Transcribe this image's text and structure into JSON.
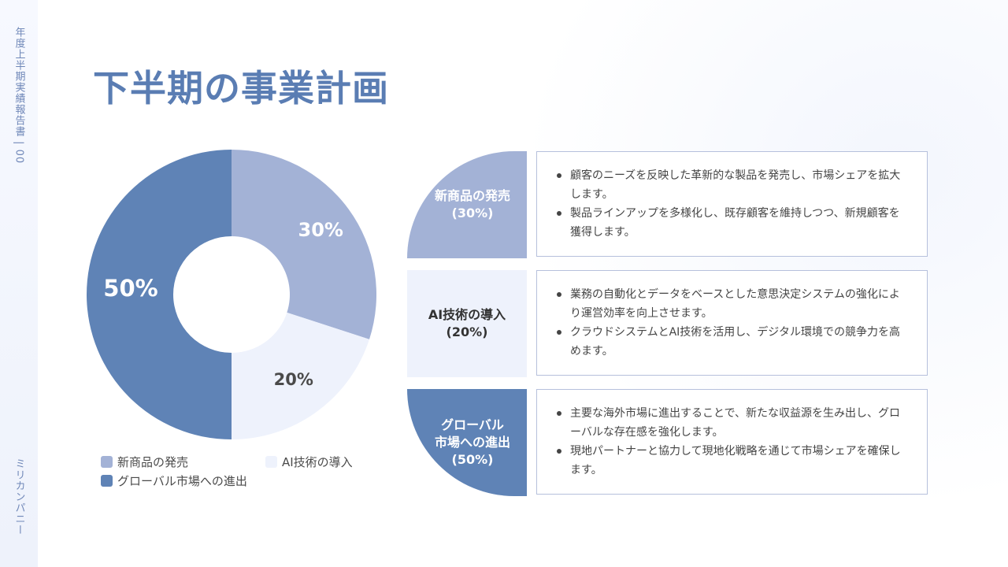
{
  "side": {
    "top_text": "年度上半期実績報告書 | 00",
    "bottom_text": "ミリカンパニー"
  },
  "title": "下半期の事業計画",
  "colors": {
    "new_product": "#a3b2d6",
    "ai": "#eef2fc",
    "global": "#5f83b6",
    "title": "#5a7db3"
  },
  "chart_data": {
    "type": "pie",
    "donut": true,
    "categories": [
      "新商品の発売",
      "AI技術の導入",
      "グローバル市場への進出"
    ],
    "values": [
      30,
      20,
      50
    ],
    "data_labels": [
      "30%",
      "20%",
      "50%"
    ],
    "legend_placement": "bottom"
  },
  "cards": [
    {
      "shape_line1": "新商品の発売",
      "shape_line2": "(30%)",
      "bullets": [
        "顧客のニーズを反映した革新的な製品を発売し、市場シェアを拡大します。",
        "製品ラインアップを多様化し、既存顧客を維持しつつ、新規顧客を獲得します。"
      ]
    },
    {
      "shape_line1": "AI技術の導入",
      "shape_line2": "(20%)",
      "bullets": [
        "業務の自動化とデータをベースとした意思決定システムの強化により運営効率を向上させます。",
        "クラウドシステムとAI技術を活用し、デジタル環境での競争力を高めます。"
      ]
    },
    {
      "shape_line1": "グローバル",
      "shape_line2": "市場への進出",
      "shape_line3": "(50%)",
      "bullets": [
        "主要な海外市場に進出することで、新たな収益源を生み出し、グローバルな存在感を強化します。",
        "現地パートナーと協力して現地化戦略を通じて市場シェアを確保します。"
      ]
    }
  ]
}
